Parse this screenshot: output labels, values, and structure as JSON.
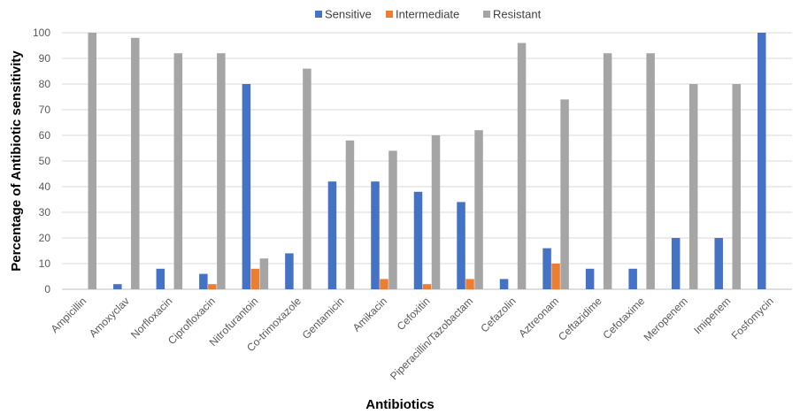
{
  "chart_data": {
    "type": "bar",
    "title": "",
    "xlabel": "Antibiotics",
    "ylabel": "Percentage of Antibiotic sensitivity",
    "ylim": [
      0,
      100
    ],
    "yticks": [
      0,
      10,
      20,
      30,
      40,
      50,
      60,
      70,
      80,
      90,
      100
    ],
    "grid": true,
    "legend_position": "top",
    "categories": [
      "Ampicillin",
      "Amoxyclav",
      "Norfloxacin",
      "Ciprofloxacin",
      "Nitrofurantoin",
      "Co-trimoxazole",
      "Gentamicin",
      "Amikacin",
      "Cefoxitin",
      "Piperacillin/Tazobactam",
      "Cefazolin",
      "Aztreonam",
      "Ceftazidime",
      "Cefotaxime",
      "Meropenem",
      "Imipenem",
      "Fosfomycin"
    ],
    "series": [
      {
        "name": "Sensitive",
        "color": "#4472C4",
        "values": [
          0,
          2,
          8,
          6,
          80,
          14,
          42,
          42,
          38,
          34,
          4,
          16,
          8,
          8,
          20,
          20,
          100
        ]
      },
      {
        "name": "Intermediate",
        "color": "#ED7D31",
        "values": [
          0,
          0,
          0,
          2,
          8,
          0,
          0,
          4,
          2,
          4,
          0,
          10,
          0,
          0,
          0,
          0,
          0
        ]
      },
      {
        "name": "Resistant",
        "color": "#A5A5A5",
        "values": [
          100,
          98,
          92,
          92,
          12,
          86,
          58,
          54,
          60,
          62,
          96,
          74,
          92,
          92,
          80,
          80,
          0
        ]
      }
    ]
  }
}
